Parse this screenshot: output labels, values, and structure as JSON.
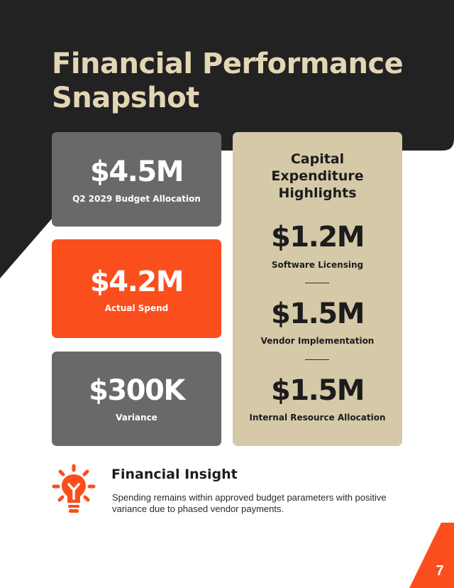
{
  "page": {
    "title": "Financial Performance Snapshot",
    "page_number": "7"
  },
  "colors": {
    "dark": "#222222",
    "accent_orange": "#fb4e1d",
    "beige": "#d5c9a8",
    "title_cream": "#e3d6b5",
    "card_gray": "#6a6969"
  },
  "cards": [
    {
      "value": "$4.5M",
      "label": "Q2 2029 Budget Allocation"
    },
    {
      "value": "$4.2M",
      "label": "Actual Spend"
    },
    {
      "value": "$300K",
      "label": "Variance"
    }
  ],
  "capex": {
    "heading": "Capital Expenditure Highlights",
    "items": [
      {
        "value": "$1.2M",
        "label": "Software Licensing"
      },
      {
        "value": "$1.5M",
        "label": "Vendor Implementation"
      },
      {
        "value": "$1.5M",
        "label": "Internal Resource Allocation"
      }
    ]
  },
  "insight": {
    "icon": "lightbulb-icon",
    "title": "Financial Insight",
    "text": "Spending remains within approved budget parameters with positive variance due to phased vendor payments."
  }
}
